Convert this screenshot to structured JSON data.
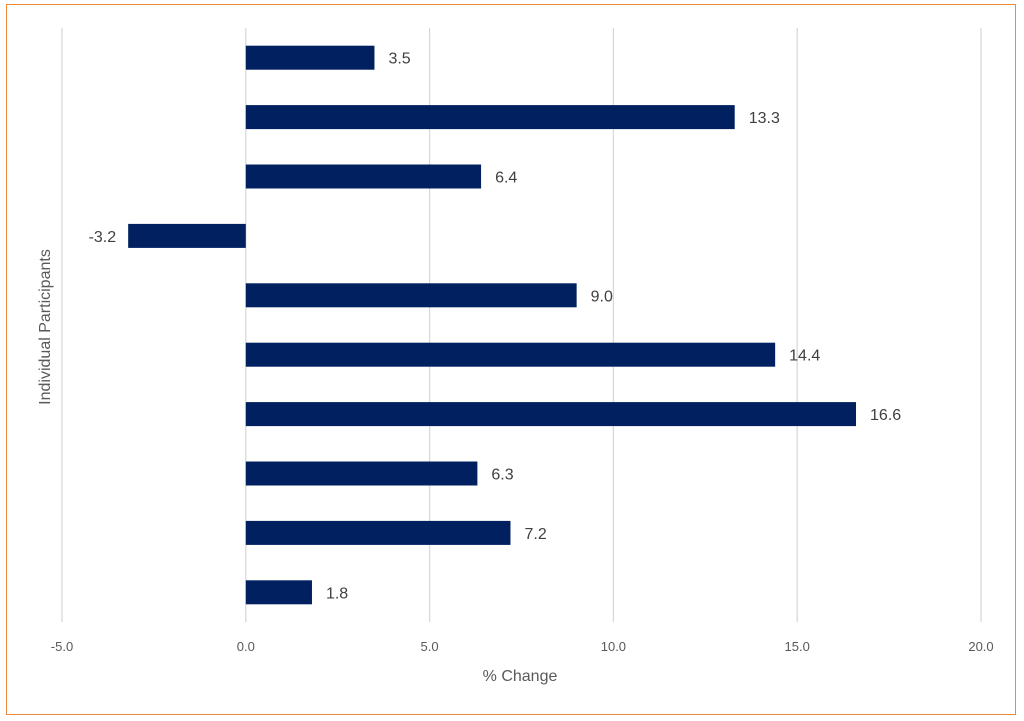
{
  "chart_data": {
    "type": "bar",
    "orientation": "horizontal",
    "categories": [
      "",
      "",
      "",
      "",
      "",
      "",
      "",
      "",
      "",
      ""
    ],
    "values": [
      3.5,
      13.3,
      6.4,
      -3.2,
      9.0,
      14.4,
      16.6,
      6.3,
      7.2,
      1.8
    ],
    "data_labels": [
      "3.5",
      "13.3",
      "6.4",
      "-3.2",
      "9.0",
      "14.4",
      "16.6",
      "6.3",
      "7.2",
      "1.8"
    ],
    "xlabel": "% Change",
    "ylabel": "Individual Participants",
    "xlim": [
      -5.0,
      20.0
    ],
    "x_ticks": [
      -5.0,
      0.0,
      5.0,
      10.0,
      15.0,
      20.0
    ],
    "x_tick_labels": [
      "-5.0",
      "0.0",
      "5.0",
      "10.0",
      "15.0",
      "20.0"
    ],
    "grid": "vertical",
    "legend": "none",
    "colors": {
      "bar": "#002060",
      "grid": "#d9d9d9",
      "frame": "#ef8a3c",
      "text": "#595959"
    }
  }
}
